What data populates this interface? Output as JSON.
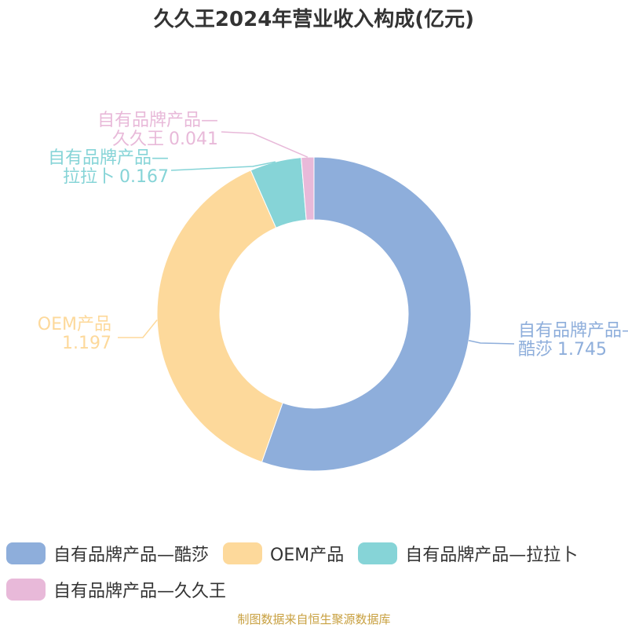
{
  "chart_data": {
    "type": "pie",
    "title": "久久王2024年营业收入构成(亿元)",
    "categories": [
      "自有品牌产品—酷莎",
      "OEM产品",
      "自有品牌产品—拉拉卜",
      "自有品牌产品—久久王"
    ],
    "values": [
      1.745,
      1.197,
      0.167,
      0.041
    ],
    "colors": [
      "#8eaedb",
      "#fdd99b",
      "#86d4d7",
      "#e8b9d9"
    ],
    "source": "制图数据来自恒生聚源数据库"
  }
}
